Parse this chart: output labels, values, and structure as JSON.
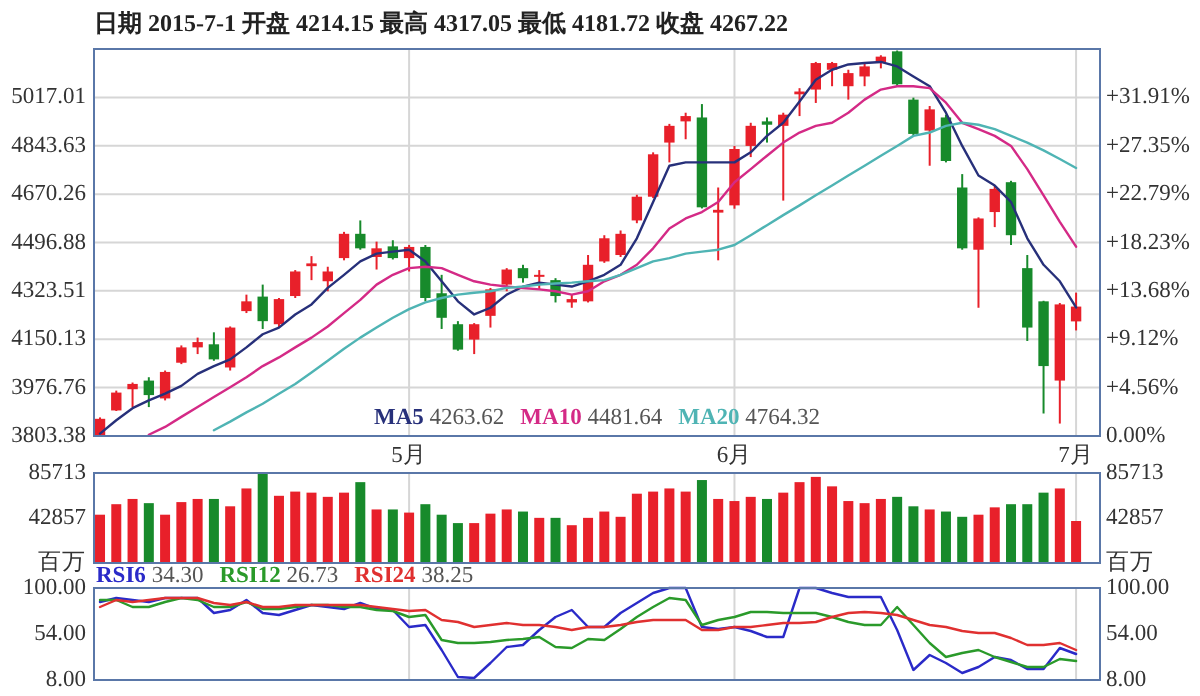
{
  "chart_data": [
    {
      "type": "candlestick",
      "title": "日期 2015-7-1 开盘 4214.15 最高 4317.05 最低 4181.72 收盘 4267.22",
      "categories": [
        null,
        null,
        null,
        null,
        null,
        null,
        null,
        null,
        null,
        null,
        null,
        null,
        null,
        null,
        null,
        null,
        null,
        null,
        null,
        "5月",
        null,
        null,
        null,
        null,
        null,
        null,
        null,
        null,
        null,
        null,
        null,
        null,
        null,
        null,
        null,
        null,
        null,
        null,
        null,
        "6月",
        null,
        null,
        null,
        null,
        null,
        null,
        null,
        null,
        null,
        null,
        null,
        null,
        null,
        null,
        null,
        null,
        null,
        null,
        null,
        null,
        "7月"
      ],
      "ohlc": [
        [
          3805,
          3870,
          3804,
          3865
        ],
        [
          3895,
          3966,
          3893,
          3959
        ],
        [
          3971,
          3995,
          3907,
          3990
        ],
        [
          4002,
          4014,
          3907,
          3950
        ],
        [
          3938,
          4038,
          3931,
          4033
        ],
        [
          4066,
          4128,
          4061,
          4121
        ],
        [
          4121,
          4156,
          4097,
          4140
        ],
        [
          4132,
          4175,
          4073,
          4078
        ],
        [
          4049,
          4196,
          4038,
          4192
        ],
        [
          4251,
          4310,
          4244,
          4286
        ],
        [
          4303,
          4346,
          4187,
          4215
        ],
        [
          4204,
          4298,
          4192,
          4294
        ],
        [
          4305,
          4398,
          4298,
          4393
        ],
        [
          4412,
          4448,
          4362,
          4422
        ],
        [
          4358,
          4410,
          4322,
          4393
        ],
        [
          4441,
          4535,
          4433,
          4528
        ],
        [
          4528,
          4576,
          4471,
          4476
        ],
        [
          4445,
          4500,
          4400,
          4476
        ],
        [
          4483,
          4505,
          4436,
          4441
        ],
        [
          4441,
          4488,
          4393,
          4481
        ],
        [
          4481,
          4488,
          4286,
          4298
        ],
        [
          4315,
          4381,
          4187,
          4227
        ],
        [
          4204,
          4215,
          4109,
          4113
        ],
        [
          4149,
          4208,
          4097,
          4204
        ],
        [
          4234,
          4334,
          4192,
          4329
        ],
        [
          4346,
          4405,
          4322,
          4400
        ],
        [
          4405,
          4417,
          4353,
          4369
        ],
        [
          4374,
          4398,
          4329,
          4381
        ],
        [
          4362,
          4369,
          4282,
          4305
        ],
        [
          4282,
          4310,
          4263,
          4294
        ],
        [
          4286,
          4452,
          4282,
          4417
        ],
        [
          4429,
          4523,
          4424,
          4512
        ],
        [
          4452,
          4540,
          4445,
          4528
        ],
        [
          4576,
          4668,
          4566,
          4661
        ],
        [
          4661,
          4820,
          4656,
          4813
        ],
        [
          4855,
          4922,
          4784,
          4915
        ],
        [
          4931,
          4962,
          4867,
          4950
        ],
        [
          4945,
          4993,
          4619,
          4623
        ],
        [
          4604,
          4694,
          4433,
          4614
        ],
        [
          4630,
          4843,
          4618,
          4832
        ],
        [
          4843,
          4926,
          4803,
          4915
        ],
        [
          4931,
          4945,
          4855,
          4919
        ],
        [
          4915,
          4962,
          4647,
          4955
        ],
        [
          5028,
          5050,
          4950,
          5038
        ],
        [
          5045,
          5144,
          4997,
          5140
        ],
        [
          5116,
          5144,
          5057,
          5140
        ],
        [
          5057,
          5116,
          5009,
          5104
        ],
        [
          5092,
          5140,
          5057,
          5128
        ],
        [
          5144,
          5168,
          5121,
          5163
        ],
        [
          5182,
          5185,
          5057,
          5064
        ],
        [
          5009,
          5016,
          4879,
          4886
        ],
        [
          4898,
          4986,
          4772,
          4974
        ],
        [
          4945,
          4955,
          4784,
          4789
        ],
        [
          4694,
          4742,
          4471,
          4476
        ],
        [
          4471,
          4587,
          4263,
          4583
        ],
        [
          4606,
          4701,
          4552,
          4689
        ],
        [
          4713,
          4718,
          4488,
          4523
        ],
        [
          4405,
          4452,
          4144,
          4192
        ],
        [
          4286,
          4288,
          3884,
          4054
        ],
        [
          4002,
          4280,
          3848,
          4275
        ],
        [
          4214.15,
          4317.05,
          4181.72,
          4267.22
        ]
      ],
      "colors": [
        "#e8202a",
        "#e8202a",
        "#e8202a",
        "#178a2b",
        "#e8202a",
        "#e8202a",
        "#e8202a",
        "#178a2b",
        "#e8202a",
        "#e8202a",
        "#178a2b",
        "#e8202a",
        "#e8202a",
        "#e8202a",
        "#e8202a",
        "#e8202a",
        "#178a2b",
        "#e8202a",
        "#178a2b",
        "#e8202a",
        "#178a2b",
        "#178a2b",
        "#178a2b",
        "#e8202a",
        "#e8202a",
        "#e8202a",
        "#178a2b",
        "#e8202a",
        "#178a2b",
        "#e8202a",
        "#e8202a",
        "#e8202a",
        "#e8202a",
        "#e8202a",
        "#e8202a",
        "#e8202a",
        "#e8202a",
        "#178a2b",
        "#e8202a",
        "#e8202a",
        "#e8202a",
        "#178a2b",
        "#e8202a",
        "#e8202a",
        "#e8202a",
        "#e8202a",
        "#e8202a",
        "#e8202a",
        "#e8202a",
        "#178a2b",
        "#178a2b",
        "#e8202a",
        "#178a2b",
        "#178a2b",
        "#e8202a",
        "#e8202a",
        "#178a2b",
        "#178a2b",
        "#178a2b",
        "#e8202a",
        "#e8202a"
      ],
      "series": [
        {
          "name": "MA5 4263.62",
          "type": "line",
          "color": "#27307a",
          "values": [
            3812,
            3860,
            3903,
            3931,
            3955,
            3983,
            4026,
            4054,
            4078,
            4121,
            4168,
            4192,
            4239,
            4275,
            4334,
            4381,
            4429,
            4457,
            4464,
            4471,
            4429,
            4358,
            4286,
            4239,
            4263,
            4310,
            4339,
            4353,
            4346,
            4339,
            4358,
            4381,
            4417,
            4512,
            4642,
            4772,
            4784,
            4784,
            4784,
            4784,
            4820,
            4879,
            4926,
            5002,
            5080,
            5116,
            5135,
            5140,
            5144,
            5128,
            5092,
            5057,
            4962,
            4843,
            4737,
            4701,
            4642,
            4512,
            4417,
            4358,
            4264
          ]
        },
        {
          "name": "MA10 4481.64",
          "type": "line",
          "color": "#d42a86",
          "values": [
            null,
            null,
            null,
            3808,
            3836,
            3872,
            3907,
            3943,
            3978,
            4014,
            4054,
            4085,
            4121,
            4156,
            4196,
            4244,
            4291,
            4346,
            4381,
            4405,
            4410,
            4405,
            4381,
            4358,
            4346,
            4339,
            4334,
            4329,
            4322,
            4310,
            4322,
            4358,
            4381,
            4417,
            4476,
            4547,
            4583,
            4606,
            4642,
            4713,
            4760,
            4808,
            4855,
            4891,
            4915,
            4926,
            4962,
            5009,
            5045,
            5057,
            5057,
            5050,
            4998,
            4926,
            4903,
            4879,
            4843,
            4760,
            4666,
            4571,
            4482
          ]
        },
        {
          "name": "MA20 4764.32",
          "type": "line",
          "color": "#4fb4b4",
          "values": [
            null,
            null,
            null,
            null,
            null,
            null,
            null,
            3824,
            3855,
            3888,
            3919,
            3955,
            3990,
            4031,
            4073,
            4116,
            4156,
            4192,
            4227,
            4258,
            4282,
            4298,
            4310,
            4317,
            4322,
            4334,
            4339,
            4346,
            4350,
            4353,
            4358,
            4362,
            4381,
            4405,
            4429,
            4441,
            4457,
            4464,
            4471,
            4488,
            4523,
            4559,
            4595,
            4630,
            4666,
            4701,
            4737,
            4772,
            4808,
            4843,
            4879,
            4891,
            4915,
            4926,
            4919,
            4903,
            4879,
            4855,
            4827,
            4796,
            4764
          ]
        }
      ],
      "ylim": [
        3803.38,
        5190.39
      ],
      "yticks": [
        3803.38,
        3976.76,
        4150.13,
        4323.51,
        4496.88,
        4670.26,
        4843.63,
        5017.01
      ],
      "y2lim": [
        0,
        36.47
      ],
      "y2ticks": [
        {
          "value": 0,
          "label": "0.00%"
        },
        {
          "value": 4.56,
          "label": "+4.56%"
        },
        {
          "value": 9.12,
          "label": "+9.12%"
        },
        {
          "value": 13.68,
          "label": "+13.68%"
        },
        {
          "value": 18.23,
          "label": "+18.23%"
        },
        {
          "value": 22.79,
          "label": "+22.79%"
        },
        {
          "value": 27.35,
          "label": "+27.35%"
        },
        {
          "value": 31.91,
          "label": "+31.91%"
        }
      ],
      "grid": true,
      "legend": "bottom"
    },
    {
      "type": "bar",
      "categories": [
        null,
        null,
        null,
        null,
        null,
        null,
        null,
        null,
        null,
        null,
        null,
        null,
        null,
        null,
        null,
        null,
        null,
        null,
        null,
        null,
        null,
        null,
        null,
        null,
        null,
        null,
        null,
        null,
        null,
        null,
        null,
        null,
        null,
        null,
        null,
        null,
        null,
        null,
        null,
        null,
        null,
        null,
        null,
        null,
        null,
        null,
        null,
        null,
        null,
        null,
        null,
        null,
        null,
        null,
        null,
        null,
        null,
        null,
        null,
        null,
        null
      ],
      "values": [
        46000,
        56000,
        61000,
        57000,
        46000,
        58000,
        61000,
        61000,
        54000,
        71000,
        85000,
        64000,
        68000,
        67000,
        63000,
        67000,
        77000,
        51000,
        51000,
        48000,
        56000,
        46000,
        38000,
        38000,
        47000,
        51000,
        49000,
        43000,
        43000,
        36000,
        43000,
        49000,
        44000,
        66000,
        68000,
        71000,
        68000,
        79000,
        61000,
        59000,
        63000,
        61000,
        67000,
        77000,
        82000,
        73000,
        59000,
        57000,
        61000,
        63000,
        54000,
        51000,
        49000,
        44000,
        46000,
        53000,
        56000,
        56000,
        67000,
        71000,
        40000
      ],
      "colors": [
        "#e8202a",
        "#e8202a",
        "#e8202a",
        "#178a2b",
        "#e8202a",
        "#e8202a",
        "#e8202a",
        "#178a2b",
        "#e8202a",
        "#e8202a",
        "#178a2b",
        "#e8202a",
        "#e8202a",
        "#e8202a",
        "#e8202a",
        "#e8202a",
        "#178a2b",
        "#e8202a",
        "#178a2b",
        "#e8202a",
        "#178a2b",
        "#178a2b",
        "#178a2b",
        "#e8202a",
        "#e8202a",
        "#e8202a",
        "#178a2b",
        "#e8202a",
        "#178a2b",
        "#e8202a",
        "#e8202a",
        "#e8202a",
        "#e8202a",
        "#e8202a",
        "#e8202a",
        "#e8202a",
        "#e8202a",
        "#178a2b",
        "#e8202a",
        "#e8202a",
        "#e8202a",
        "#178a2b",
        "#e8202a",
        "#e8202a",
        "#e8202a",
        "#e8202a",
        "#e8202a",
        "#e8202a",
        "#e8202a",
        "#178a2b",
        "#178a2b",
        "#e8202a",
        "#178a2b",
        "#178a2b",
        "#e8202a",
        "#e8202a",
        "#178a2b",
        "#178a2b",
        "#178a2b",
        "#e8202a",
        "#e8202a"
      ],
      "ylim": [
        0,
        85713
      ],
      "yticks": [
        {
          "value": 0,
          "label": "百万"
        },
        42857,
        85713
      ],
      "y2lim": [
        0,
        85713
      ],
      "y2ticks": [
        {
          "value": 0,
          "label": "百万"
        },
        42857,
        85713
      ],
      "grid": "x",
      "tick_labels": "y"
    },
    {
      "type": "line",
      "categories": [
        null,
        null,
        null,
        null,
        null,
        null,
        null,
        null,
        null,
        null,
        null,
        null,
        null,
        null,
        null,
        null,
        null,
        null,
        null,
        null,
        null,
        null,
        null,
        null,
        null,
        null,
        null,
        null,
        null,
        null,
        null,
        null,
        null,
        null,
        null,
        null,
        null,
        null,
        null,
        null,
        null,
        null,
        null,
        null,
        null,
        null,
        null,
        null,
        null,
        null,
        null,
        null,
        null,
        null,
        null,
        null,
        null,
        null,
        null,
        null,
        null
      ],
      "series": [
        {
          "name": "RSI6 34.30",
          "color": "#2a2ac8",
          "values": [
            86,
            90,
            88,
            86,
            90,
            90,
            90,
            75,
            78,
            88,
            75,
            73,
            78,
            83,
            81,
            79,
            85,
            79,
            78,
            61,
            63,
            38,
            11,
            10,
            25,
            41,
            43,
            58,
            71,
            78,
            61,
            61,
            75,
            85,
            95,
            100,
            100,
            61,
            59,
            61,
            57,
            51,
            51,
            100,
            100,
            95,
            91,
            91,
            91,
            58,
            18,
            33,
            25,
            15,
            21,
            31,
            28,
            19,
            19,
            40,
            34
          ]
        },
        {
          "name": "RSI12 26.73",
          "color": "#2a9a2a",
          "values": [
            88,
            88,
            81,
            81,
            86,
            90,
            88,
            81,
            81,
            86,
            79,
            79,
            81,
            83,
            83,
            81,
            81,
            78,
            77,
            71,
            73,
            48,
            45,
            45,
            46,
            48,
            49,
            51,
            41,
            40,
            49,
            48,
            59,
            71,
            81,
            90,
            88,
            63,
            68,
            71,
            76,
            76,
            75,
            75,
            75,
            71,
            66,
            63,
            63,
            81,
            63,
            45,
            31,
            35,
            38,
            31,
            26,
            21,
            21,
            29,
            27
          ]
        },
        {
          "name": "RSI24 38.25",
          "color": "#e03030",
          "values": [
            81,
            88,
            86,
            88,
            90,
            90,
            90,
            85,
            83,
            86,
            81,
            81,
            83,
            83,
            83,
            83,
            83,
            81,
            79,
            77,
            78,
            68,
            66,
            61,
            63,
            65,
            63,
            63,
            61,
            58,
            61,
            61,
            63,
            66,
            68,
            68,
            68,
            58,
            58,
            61,
            61,
            63,
            65,
            65,
            66,
            71,
            75,
            76,
            75,
            73,
            68,
            63,
            61,
            57,
            55,
            55,
            50,
            43,
            43,
            45,
            38
          ]
        }
      ],
      "ylim": [
        8,
        100
      ],
      "yticks": [
        {
          "value": 8,
          "label": "8.00"
        },
        {
          "value": 54,
          "label": "54.00"
        },
        {
          "value": 100,
          "label": "100.00"
        }
      ],
      "y2lim": [
        8,
        100
      ],
      "y2ticks": [
        {
          "value": 8,
          "label": "8.00"
        },
        {
          "value": 54,
          "label": "54.00"
        },
        {
          "value": 100,
          "label": "100.00"
        }
      ],
      "grid": "x",
      "legend": "top left",
      "tick_labels": "y"
    }
  ]
}
